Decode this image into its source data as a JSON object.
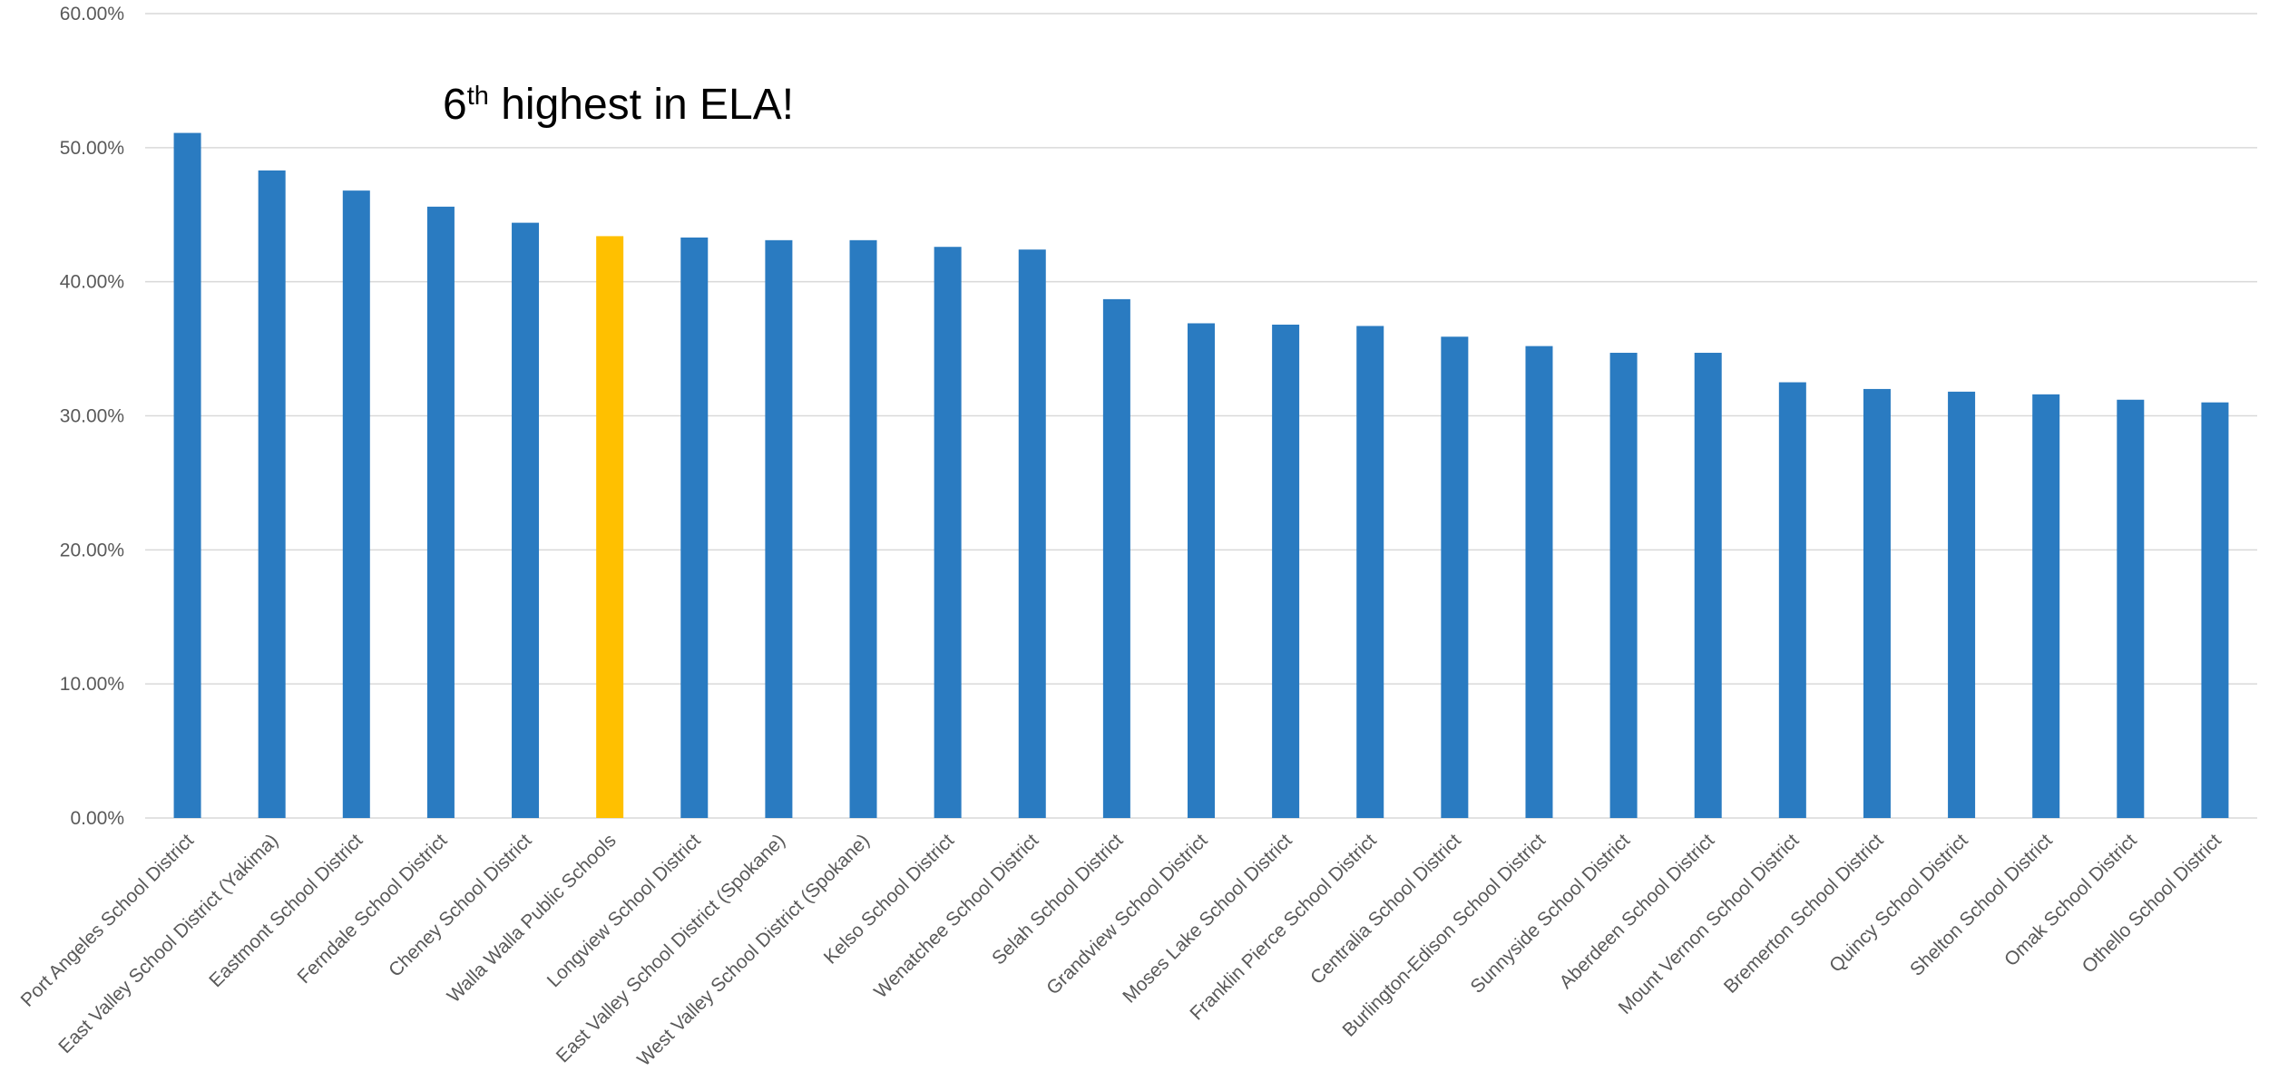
{
  "annotation": {
    "prefix": "6",
    "superscript": "th",
    "text": " highest in ELA!"
  },
  "colors": {
    "default_bar": "#2a7bc1",
    "highlight_bar": "#ffc000"
  },
  "chart_data": {
    "type": "bar",
    "title": "",
    "xlabel": "",
    "ylabel": "",
    "ylim": [
      0,
      0.6
    ],
    "yticks": [
      0,
      0.1,
      0.2,
      0.3,
      0.4,
      0.5,
      0.6
    ],
    "ytick_labels": [
      "0.00%",
      "10.00%",
      "20.00%",
      "30.00%",
      "40.00%",
      "50.00%",
      "60.00%"
    ],
    "grid": true,
    "highlight_category": "Walla Walla Public Schools",
    "categories": [
      "Port Angeles School District",
      "East Valley School District (Yakima)",
      "Eastmont School District",
      "Ferndale School District",
      "Cheney School District",
      "Walla Walla Public Schools",
      "Longview School District",
      "East Valley School District (Spokane)",
      "West Valley School District (Spokane)",
      "Kelso School District",
      "Wenatchee School District",
      "Selah School District",
      "Grandview School District",
      "Moses Lake School District",
      "Franklin Pierce School District",
      "Centralia School District",
      "Burlington-Edison School District",
      "Sunnyside School District",
      "Aberdeen School District",
      "Mount Vernon School District",
      "Bremerton School District",
      "Quincy School District",
      "Shelton School District",
      "Omak School District",
      "Othello School District"
    ],
    "values": [
      0.511,
      0.483,
      0.468,
      0.456,
      0.444,
      0.434,
      0.433,
      0.431,
      0.431,
      0.426,
      0.424,
      0.387,
      0.369,
      0.368,
      0.367,
      0.359,
      0.352,
      0.347,
      0.347,
      0.325,
      0.32,
      0.318,
      0.316,
      0.312,
      0.31
    ]
  }
}
